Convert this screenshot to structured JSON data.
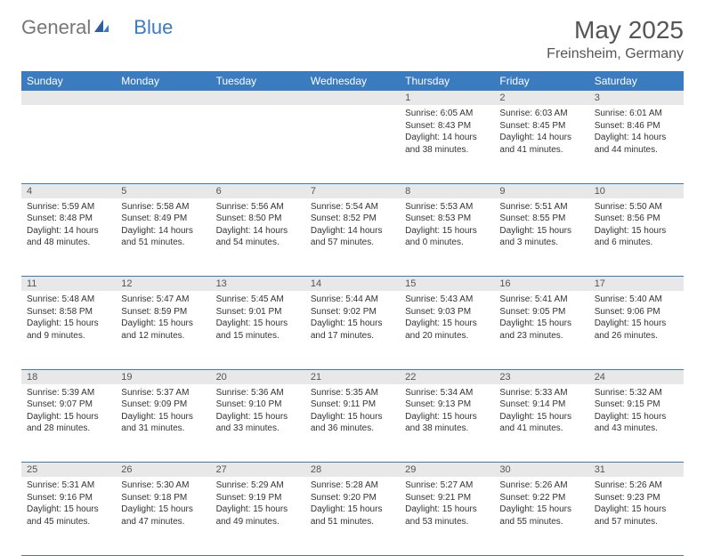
{
  "brand": {
    "general": "General",
    "blue": "Blue"
  },
  "title": "May 2025",
  "location": "Freinsheim, Germany",
  "headers": [
    "Sunday",
    "Monday",
    "Tuesday",
    "Wednesday",
    "Thursday",
    "Friday",
    "Saturday"
  ],
  "colors": {
    "header_bg": "#3b7bbf",
    "header_fg": "#ffffff",
    "daynum_bg": "#e8e8e8",
    "rule": "#3b7bbf",
    "text": "#333333",
    "title": "#555555"
  },
  "weeks": [
    [
      {
        "n": "",
        "sunrise": "",
        "sunset": "",
        "daylight": ""
      },
      {
        "n": "",
        "sunrise": "",
        "sunset": "",
        "daylight": ""
      },
      {
        "n": "",
        "sunrise": "",
        "sunset": "",
        "daylight": ""
      },
      {
        "n": "",
        "sunrise": "",
        "sunset": "",
        "daylight": ""
      },
      {
        "n": "1",
        "sunrise": "Sunrise: 6:05 AM",
        "sunset": "Sunset: 8:43 PM",
        "daylight": "Daylight: 14 hours and 38 minutes."
      },
      {
        "n": "2",
        "sunrise": "Sunrise: 6:03 AM",
        "sunset": "Sunset: 8:45 PM",
        "daylight": "Daylight: 14 hours and 41 minutes."
      },
      {
        "n": "3",
        "sunrise": "Sunrise: 6:01 AM",
        "sunset": "Sunset: 8:46 PM",
        "daylight": "Daylight: 14 hours and 44 minutes."
      }
    ],
    [
      {
        "n": "4",
        "sunrise": "Sunrise: 5:59 AM",
        "sunset": "Sunset: 8:48 PM",
        "daylight": "Daylight: 14 hours and 48 minutes."
      },
      {
        "n": "5",
        "sunrise": "Sunrise: 5:58 AM",
        "sunset": "Sunset: 8:49 PM",
        "daylight": "Daylight: 14 hours and 51 minutes."
      },
      {
        "n": "6",
        "sunrise": "Sunrise: 5:56 AM",
        "sunset": "Sunset: 8:50 PM",
        "daylight": "Daylight: 14 hours and 54 minutes."
      },
      {
        "n": "7",
        "sunrise": "Sunrise: 5:54 AM",
        "sunset": "Sunset: 8:52 PM",
        "daylight": "Daylight: 14 hours and 57 minutes."
      },
      {
        "n": "8",
        "sunrise": "Sunrise: 5:53 AM",
        "sunset": "Sunset: 8:53 PM",
        "daylight": "Daylight: 15 hours and 0 minutes."
      },
      {
        "n": "9",
        "sunrise": "Sunrise: 5:51 AM",
        "sunset": "Sunset: 8:55 PM",
        "daylight": "Daylight: 15 hours and 3 minutes."
      },
      {
        "n": "10",
        "sunrise": "Sunrise: 5:50 AM",
        "sunset": "Sunset: 8:56 PM",
        "daylight": "Daylight: 15 hours and 6 minutes."
      }
    ],
    [
      {
        "n": "11",
        "sunrise": "Sunrise: 5:48 AM",
        "sunset": "Sunset: 8:58 PM",
        "daylight": "Daylight: 15 hours and 9 minutes."
      },
      {
        "n": "12",
        "sunrise": "Sunrise: 5:47 AM",
        "sunset": "Sunset: 8:59 PM",
        "daylight": "Daylight: 15 hours and 12 minutes."
      },
      {
        "n": "13",
        "sunrise": "Sunrise: 5:45 AM",
        "sunset": "Sunset: 9:01 PM",
        "daylight": "Daylight: 15 hours and 15 minutes."
      },
      {
        "n": "14",
        "sunrise": "Sunrise: 5:44 AM",
        "sunset": "Sunset: 9:02 PM",
        "daylight": "Daylight: 15 hours and 17 minutes."
      },
      {
        "n": "15",
        "sunrise": "Sunrise: 5:43 AM",
        "sunset": "Sunset: 9:03 PM",
        "daylight": "Daylight: 15 hours and 20 minutes."
      },
      {
        "n": "16",
        "sunrise": "Sunrise: 5:41 AM",
        "sunset": "Sunset: 9:05 PM",
        "daylight": "Daylight: 15 hours and 23 minutes."
      },
      {
        "n": "17",
        "sunrise": "Sunrise: 5:40 AM",
        "sunset": "Sunset: 9:06 PM",
        "daylight": "Daylight: 15 hours and 26 minutes."
      }
    ],
    [
      {
        "n": "18",
        "sunrise": "Sunrise: 5:39 AM",
        "sunset": "Sunset: 9:07 PM",
        "daylight": "Daylight: 15 hours and 28 minutes."
      },
      {
        "n": "19",
        "sunrise": "Sunrise: 5:37 AM",
        "sunset": "Sunset: 9:09 PM",
        "daylight": "Daylight: 15 hours and 31 minutes."
      },
      {
        "n": "20",
        "sunrise": "Sunrise: 5:36 AM",
        "sunset": "Sunset: 9:10 PM",
        "daylight": "Daylight: 15 hours and 33 minutes."
      },
      {
        "n": "21",
        "sunrise": "Sunrise: 5:35 AM",
        "sunset": "Sunset: 9:11 PM",
        "daylight": "Daylight: 15 hours and 36 minutes."
      },
      {
        "n": "22",
        "sunrise": "Sunrise: 5:34 AM",
        "sunset": "Sunset: 9:13 PM",
        "daylight": "Daylight: 15 hours and 38 minutes."
      },
      {
        "n": "23",
        "sunrise": "Sunrise: 5:33 AM",
        "sunset": "Sunset: 9:14 PM",
        "daylight": "Daylight: 15 hours and 41 minutes."
      },
      {
        "n": "24",
        "sunrise": "Sunrise: 5:32 AM",
        "sunset": "Sunset: 9:15 PM",
        "daylight": "Daylight: 15 hours and 43 minutes."
      }
    ],
    [
      {
        "n": "25",
        "sunrise": "Sunrise: 5:31 AM",
        "sunset": "Sunset: 9:16 PM",
        "daylight": "Daylight: 15 hours and 45 minutes."
      },
      {
        "n": "26",
        "sunrise": "Sunrise: 5:30 AM",
        "sunset": "Sunset: 9:18 PM",
        "daylight": "Daylight: 15 hours and 47 minutes."
      },
      {
        "n": "27",
        "sunrise": "Sunrise: 5:29 AM",
        "sunset": "Sunset: 9:19 PM",
        "daylight": "Daylight: 15 hours and 49 minutes."
      },
      {
        "n": "28",
        "sunrise": "Sunrise: 5:28 AM",
        "sunset": "Sunset: 9:20 PM",
        "daylight": "Daylight: 15 hours and 51 minutes."
      },
      {
        "n": "29",
        "sunrise": "Sunrise: 5:27 AM",
        "sunset": "Sunset: 9:21 PM",
        "daylight": "Daylight: 15 hours and 53 minutes."
      },
      {
        "n": "30",
        "sunrise": "Sunrise: 5:26 AM",
        "sunset": "Sunset: 9:22 PM",
        "daylight": "Daylight: 15 hours and 55 minutes."
      },
      {
        "n": "31",
        "sunrise": "Sunrise: 5:26 AM",
        "sunset": "Sunset: 9:23 PM",
        "daylight": "Daylight: 15 hours and 57 minutes."
      }
    ]
  ]
}
